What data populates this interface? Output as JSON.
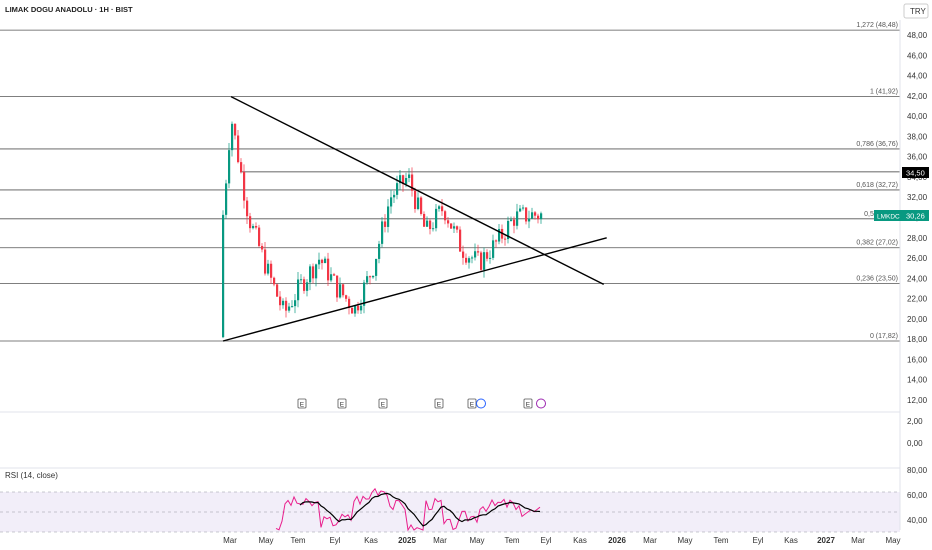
{
  "header": {
    "title": "LIMAK DOGU ANADOLU · 1H · BIST",
    "currency": "TRY"
  },
  "chart_data": {
    "type": "candlestick",
    "symbol": "LMKDC",
    "last_price_label": "30,26",
    "level_label": "34,50",
    "price_ticks": [
      "48,00",
      "46,00",
      "44,00",
      "42,00",
      "40,00",
      "38,00",
      "36,00",
      "34,00",
      "32,00",
      "30,00",
      "28,00",
      "26,00",
      "24,00",
      "22,00",
      "20,00",
      "18,00",
      "16,00",
      "14,00",
      "12,00",
      "2,00",
      "0,00"
    ],
    "rsi_ticks": [
      "80,00",
      "60,00",
      "40,00"
    ],
    "x_ticks": [
      "Mar",
      "May",
      "Tem",
      "Eyl",
      "Kas",
      "2025",
      "Mar",
      "May",
      "Tem",
      "Eyl",
      "Kas",
      "2026",
      "Mar",
      "May",
      "Tem",
      "Eyl",
      "Kas",
      "2027",
      "Mar",
      "May"
    ],
    "fib_levels": [
      {
        "label": "1,272 (48,48)",
        "price": 48.48
      },
      {
        "label": "1 (41,92)",
        "price": 41.92
      },
      {
        "label": "0,786 (36,76)",
        "price": 36.76
      },
      {
        "label": "0,618 (32,72)",
        "price": 32.72
      },
      {
        "label": "0,5 (29,87)",
        "price": 29.87
      },
      {
        "label": "0,382 (27,02)",
        "price": 27.02
      },
      {
        "label": "0,236 (23,50)",
        "price": 23.5
      },
      {
        "label": "0 (17,82)",
        "price": 17.82
      }
    ],
    "resistance_level": 34.5,
    "triangle": {
      "upper": {
        "from": {
          "date": "2024-03",
          "price": 41.92
        },
        "to": {
          "date": "2025-12",
          "price": 23.4
        }
      },
      "lower": {
        "from": {
          "date": "2024-03",
          "price": 17.82
        },
        "to": {
          "date": "2025-12",
          "price": 28.0
        }
      }
    },
    "candles_approx": [
      {
        "date": "2024-02",
        "close": 18.5
      },
      {
        "date": "2024-03",
        "close": 40.0
      },
      {
        "date": "2024-04",
        "close": 30.0
      },
      {
        "date": "2024-05",
        "close": 25.0
      },
      {
        "date": "2024-06",
        "close": 20.5
      },
      {
        "date": "2024-07",
        "close": 23.5
      },
      {
        "date": "2024-08",
        "close": 26.0
      },
      {
        "date": "2024-09",
        "close": 23.0
      },
      {
        "date": "2024-10",
        "close": 21.0
      },
      {
        "date": "2024-11",
        "close": 25.0
      },
      {
        "date": "2024-12",
        "close": 32.0
      },
      {
        "date": "2025-01",
        "close": 34.0
      },
      {
        "date": "2025-02",
        "close": 28.5
      },
      {
        "date": "2025-03",
        "close": 31.0
      },
      {
        "date": "2025-04",
        "close": 27.0
      },
      {
        "date": "2025-05",
        "close": 25.5
      },
      {
        "date": "2025-06",
        "close": 27.5
      },
      {
        "date": "2025-07",
        "close": 30.0
      },
      {
        "date": "2025-08",
        "close": 30.26
      }
    ],
    "rsi": {
      "label": "RSI (14, close)",
      "upper_band": 70,
      "lower_band": 30
    },
    "event_markers": [
      "E",
      "E",
      "E",
      "E",
      "E",
      "E"
    ],
    "colors": {
      "up": "#089981",
      "down": "#f23645",
      "rsi": "#e91e8c",
      "rsi_ma": "#000000",
      "rsi_band": "#7e57c2",
      "last_price": "#089981",
      "level_box": "#000000"
    }
  }
}
